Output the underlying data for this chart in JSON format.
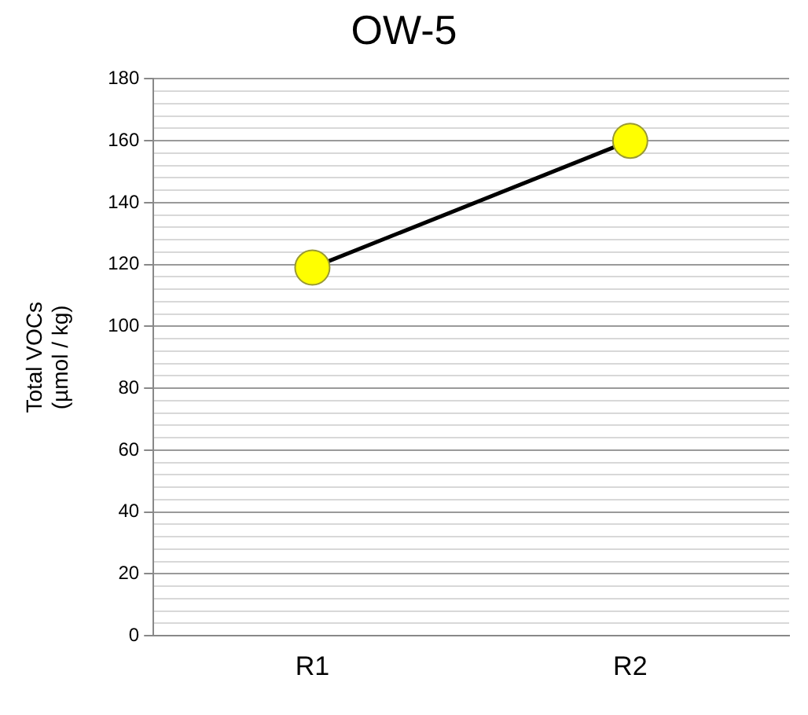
{
  "chart_data": {
    "type": "line",
    "title": "OW-5",
    "ylabel": "Total VOCs\n(µmol / kg)",
    "categories": [
      "R1",
      "R2"
    ],
    "series": [
      {
        "color": "#000000",
        "colors": [
          "#ffff00",
          "#ffff00"
        ],
        "values": [
          119,
          160
        ]
      }
    ],
    "ylim": [
      0,
      180
    ],
    "yticks": [
      0,
      {
        "value": 4,
        "label": null
      },
      {
        "value": 8,
        "label": null
      },
      {
        "value": 12,
        "label": null
      },
      {
        "value": 16,
        "label": null
      },
      20,
      {
        "value": 24,
        "label": null
      },
      {
        "value": 28,
        "label": null
      },
      {
        "value": 32,
        "label": null
      },
      {
        "value": 36,
        "label": null
      },
      40,
      {
        "value": 44,
        "label": null
      },
      {
        "value": 48,
        "label": null
      },
      {
        "value": 52,
        "label": null
      },
      {
        "value": 56,
        "label": null
      },
      60,
      {
        "value": 64,
        "label": null
      },
      {
        "value": 68,
        "label": null
      },
      {
        "value": 72,
        "label": null
      },
      {
        "value": 76,
        "label": null
      },
      80,
      {
        "value": 84,
        "label": null
      },
      {
        "value": 88,
        "label": null
      },
      {
        "value": 92,
        "label": null
      },
      {
        "value": 96,
        "label": null
      },
      100,
      {
        "value": 104,
        "label": null
      },
      {
        "value": 108,
        "label": null
      },
      {
        "value": 112,
        "label": null
      },
      {
        "value": 116,
        "label": null
      },
      120,
      {
        "value": 124,
        "label": null
      },
      {
        "value": 128,
        "label": null
      },
      {
        "value": 132,
        "label": null
      },
      {
        "value": 136,
        "label": null
      },
      140,
      {
        "value": 144,
        "label": null
      },
      {
        "value": 148,
        "label": null
      },
      {
        "value": 152,
        "label": null
      },
      {
        "value": 156,
        "label": null
      },
      160,
      {
        "value": 164,
        "label": null
      },
      {
        "value": 168,
        "label": null
      },
      {
        "value": 172,
        "label": null
      },
      {
        "value": 176,
        "label": null
      },
      180
    ],
    "grid": "y",
    "legend": false,
    "marker": "circle",
    "line_style": "solid"
  }
}
